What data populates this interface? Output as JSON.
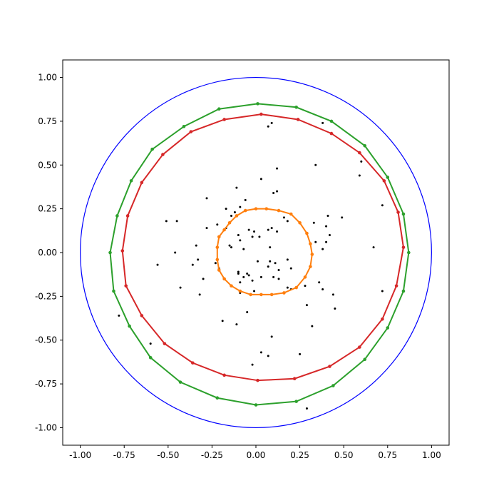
{
  "chart_data": {
    "type": "scatter",
    "title": "",
    "xlabel": "",
    "ylabel": "",
    "xlim": [
      -1.1,
      1.1
    ],
    "ylim": [
      -1.1,
      1.1
    ],
    "grid": false,
    "xticks": [
      "-1.00",
      "-0.75",
      "-0.50",
      "-0.25",
      "0.00",
      "0.25",
      "0.50",
      "0.75",
      "1.00"
    ],
    "yticks": [
      "-1.00",
      "-0.75",
      "-0.50",
      "-0.25",
      "0.00",
      "0.25",
      "0.50",
      "0.75",
      "1.00"
    ],
    "unit_circle": {
      "radius": 1.0,
      "color": "#0000ff"
    },
    "series": [
      {
        "kind": "points",
        "color": "#000000",
        "points": [
          [
            0.09,
            0.74
          ],
          [
            0.07,
            0.72
          ],
          [
            0.38,
            0.74
          ],
          [
            0.34,
            0.5
          ],
          [
            0.6,
            0.52
          ],
          [
            0.59,
            0.44
          ],
          [
            0.12,
            0.48
          ],
          [
            0.03,
            0.42
          ],
          [
            0.72,
            0.27
          ],
          [
            0.49,
            0.2
          ],
          [
            0.41,
            0.21
          ],
          [
            0.33,
            0.17
          ],
          [
            0.4,
            0.15
          ],
          [
            0.42,
            0.1
          ],
          [
            0.4,
            0.06
          ],
          [
            0.38,
            0.02
          ],
          [
            0.34,
            0.06
          ],
          [
            0.67,
            0.03
          ],
          [
            0.12,
            0.35
          ],
          [
            0.1,
            0.34
          ],
          [
            -0.11,
            0.37
          ],
          [
            -0.06,
            0.3
          ],
          [
            -0.09,
            0.26
          ],
          [
            -0.17,
            0.25
          ],
          [
            -0.14,
            0.21
          ],
          [
            -0.12,
            0.23
          ],
          [
            -0.28,
            0.31
          ],
          [
            -0.22,
            0.16
          ],
          [
            -0.51,
            0.18
          ],
          [
            -0.45,
            0.18
          ],
          [
            -0.28,
            0.14
          ],
          [
            -0.17,
            0.14
          ],
          [
            -0.1,
            0.1
          ],
          [
            -0.04,
            0.13
          ],
          [
            -0.02,
            0.09
          ],
          [
            -0.01,
            0.12
          ],
          [
            0.07,
            0.13
          ],
          [
            0.09,
            0.14
          ],
          [
            0.12,
            0.12
          ],
          [
            0.16,
            0.2
          ],
          [
            0.18,
            0.18
          ],
          [
            0.02,
            0.09
          ],
          [
            -0.15,
            0.04
          ],
          [
            -0.14,
            0.03
          ],
          [
            -0.09,
            0.07
          ],
          [
            -0.07,
            0.02
          ],
          [
            0.08,
            0.03
          ],
          [
            -0.34,
            0.04
          ],
          [
            -0.46,
            0.0
          ],
          [
            -0.33,
            -0.04
          ],
          [
            -0.36,
            -0.07
          ],
          [
            -0.56,
            -0.07
          ],
          [
            -0.23,
            -0.06
          ],
          [
            -0.21,
            -0.09
          ],
          [
            -0.3,
            -0.15
          ],
          [
            -0.43,
            -0.2
          ],
          [
            -0.32,
            -0.24
          ],
          [
            -0.1,
            -0.11
          ],
          [
            -0.05,
            -0.12
          ],
          [
            -0.04,
            -0.13
          ],
          [
            -0.07,
            -0.14
          ],
          [
            -0.09,
            -0.17
          ],
          [
            -0.02,
            -0.16
          ],
          [
            0.03,
            -0.14
          ],
          [
            0.08,
            -0.05
          ],
          [
            0.11,
            -0.06
          ],
          [
            0.13,
            -0.1
          ],
          [
            0.18,
            -0.04
          ],
          [
            0.2,
            -0.09
          ],
          [
            0.1,
            -0.14
          ],
          [
            0.13,
            -0.15
          ],
          [
            0.01,
            -0.05
          ],
          [
            0.07,
            -0.08
          ],
          [
            0.2,
            -0.21
          ],
          [
            0.18,
            -0.2
          ],
          [
            0.28,
            -0.19
          ],
          [
            0.36,
            -0.17
          ],
          [
            0.38,
            -0.21
          ],
          [
            0.44,
            -0.24
          ],
          [
            0.29,
            -0.3
          ],
          [
            0.45,
            -0.32
          ],
          [
            0.32,
            -0.42
          ],
          [
            0.72,
            -0.22
          ],
          [
            -0.09,
            -0.23
          ],
          [
            -0.05,
            -0.34
          ],
          [
            -0.19,
            -0.39
          ],
          [
            -0.11,
            -0.41
          ],
          [
            0.09,
            -0.48
          ],
          [
            -0.01,
            -0.22
          ],
          [
            -0.1,
            -0.12
          ],
          [
            -0.78,
            -0.36
          ],
          [
            -0.6,
            -0.52
          ],
          [
            0.03,
            -0.57
          ],
          [
            0.07,
            -0.59
          ],
          [
            -0.02,
            -0.64
          ],
          [
            0.25,
            -0.58
          ],
          [
            0.29,
            -0.89
          ]
        ]
      },
      {
        "kind": "polygon",
        "color": "#ff7f0e",
        "points": [
          [
            0.32,
            -0.01
          ],
          [
            0.31,
            -0.08
          ],
          [
            0.28,
            -0.14
          ],
          [
            0.23,
            -0.2
          ],
          [
            0.16,
            -0.23
          ],
          [
            0.09,
            -0.24
          ],
          [
            0.03,
            -0.24
          ],
          [
            -0.03,
            -0.24
          ],
          [
            -0.09,
            -0.22
          ],
          [
            -0.14,
            -0.19
          ],
          [
            -0.18,
            -0.15
          ],
          [
            -0.21,
            -0.1
          ],
          [
            -0.22,
            -0.04
          ],
          [
            -0.22,
            0.03
          ],
          [
            -0.21,
            0.09
          ],
          [
            -0.18,
            0.13
          ],
          [
            -0.15,
            0.17
          ],
          [
            -0.11,
            0.21
          ],
          [
            -0.06,
            0.24
          ],
          [
            0.0,
            0.25
          ],
          [
            0.06,
            0.25
          ],
          [
            0.13,
            0.24
          ],
          [
            0.2,
            0.22
          ],
          [
            0.25,
            0.17
          ],
          [
            0.29,
            0.11
          ],
          [
            0.31,
            0.05
          ]
        ]
      },
      {
        "kind": "polygon",
        "color": "#d62728",
        "points": [
          [
            0.84,
            0.03
          ],
          [
            0.8,
            -0.19
          ],
          [
            0.72,
            -0.38
          ],
          [
            0.59,
            -0.54
          ],
          [
            0.42,
            -0.65
          ],
          [
            0.22,
            -0.72
          ],
          [
            0.01,
            -0.73
          ],
          [
            -0.18,
            -0.7
          ],
          [
            -0.36,
            -0.63
          ],
          [
            -0.52,
            -0.52
          ],
          [
            -0.65,
            -0.36
          ],
          [
            -0.74,
            -0.19
          ],
          [
            -0.76,
            0.01
          ],
          [
            -0.73,
            0.21
          ],
          [
            -0.65,
            0.4
          ],
          [
            -0.53,
            0.56
          ],
          [
            -0.37,
            0.69
          ],
          [
            -0.18,
            0.76
          ],
          [
            0.03,
            0.79
          ],
          [
            0.24,
            0.76
          ],
          [
            0.43,
            0.68
          ],
          [
            0.59,
            0.57
          ],
          [
            0.73,
            0.41
          ],
          [
            0.81,
            0.23
          ]
        ]
      },
      {
        "kind": "polygon",
        "color": "#2ca02c",
        "points": [
          [
            0.87,
            0.0
          ],
          [
            0.84,
            -0.22
          ],
          [
            0.75,
            -0.43
          ],
          [
            0.62,
            -0.61
          ],
          [
            0.44,
            -0.76
          ],
          [
            0.23,
            -0.85
          ],
          [
            0.0,
            -0.87
          ],
          [
            -0.22,
            -0.83
          ],
          [
            -0.43,
            -0.74
          ],
          [
            -0.6,
            -0.6
          ],
          [
            -0.72,
            -0.42
          ],
          [
            -0.81,
            -0.22
          ],
          [
            -0.83,
            0.0
          ],
          [
            -0.79,
            0.21
          ],
          [
            -0.71,
            0.41
          ],
          [
            -0.59,
            0.59
          ],
          [
            -0.41,
            0.72
          ],
          [
            -0.21,
            0.82
          ],
          [
            0.01,
            0.85
          ],
          [
            0.23,
            0.83
          ],
          [
            0.43,
            0.75
          ],
          [
            0.62,
            0.61
          ],
          [
            0.75,
            0.43
          ],
          [
            0.84,
            0.22
          ]
        ]
      }
    ]
  }
}
